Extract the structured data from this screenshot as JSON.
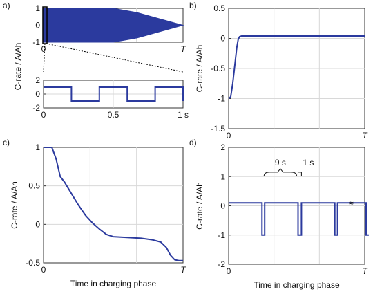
{
  "colors": {
    "line": "#2b3a9e",
    "fill": "#2b3a9e",
    "grid": "#d8d8d8",
    "axis": "#333333"
  },
  "chart_data": [
    {
      "panel_label": "a)",
      "type": "area",
      "ylim": [
        -1,
        1
      ],
      "yticks": [
        "1",
        "0",
        "-1"
      ],
      "xtick_labels": [
        "0",
        "T"
      ],
      "grid": true,
      "x": [
        0,
        0.5,
        0.67,
        1
      ],
      "upper": [
        1,
        1,
        0.75,
        0
      ],
      "lower": [
        -1,
        -1,
        -0.75,
        0
      ],
      "zoom_marker_x": 0.01
    },
    {
      "panel_label": "",
      "type": "line",
      "ylabel": "C-rate / A/Ah",
      "ylim": [
        -2,
        2
      ],
      "xlim": [
        0,
        1
      ],
      "yticks": [
        "2",
        "0",
        "-2"
      ],
      "xtick_labels": [
        "0",
        "0.5",
        "1 s"
      ],
      "grid": true,
      "x": [
        0,
        0.2,
        0.2,
        0.4,
        0.4,
        0.6,
        0.6,
        0.8,
        0.8,
        1,
        1
      ],
      "y": [
        1,
        1,
        -1,
        -1,
        1,
        1,
        -1,
        -1,
        1,
        1,
        -1
      ]
    },
    {
      "panel_label": "b)",
      "type": "line",
      "ylabel": "C-rate / A/Ah",
      "ylim": [
        -1.5,
        0.5
      ],
      "yticks": [
        "0.5",
        "0",
        "-0.5",
        "-1",
        "-1.5"
      ],
      "xtick_labels": [
        "0",
        "T"
      ],
      "grid": true,
      "x": [
        0,
        0.015,
        0.03,
        0.045,
        0.06,
        0.07,
        0.08,
        0.095,
        1
      ],
      "y": [
        -1,
        -0.97,
        -0.75,
        -0.45,
        -0.15,
        -0.02,
        0.03,
        0.04,
        0.04
      ]
    },
    {
      "panel_label": "c)",
      "type": "line",
      "ylabel": "C-rate / A/Ah",
      "xlabel": "Time in charging phase",
      "ylim": [
        -0.5,
        1
      ],
      "yticks": [
        "1",
        "0.5",
        "0",
        "-0.5"
      ],
      "xtick_labels": [
        "0",
        "T"
      ],
      "grid": true,
      "x": [
        0,
        0.06,
        0.09,
        0.12,
        0.15,
        0.2,
        0.25,
        0.3,
        0.35,
        0.4,
        0.45,
        0.5,
        0.6,
        0.7,
        0.78,
        0.84,
        0.88,
        0.91,
        0.94,
        0.97,
        1
      ],
      "y": [
        1,
        1,
        0.85,
        0.62,
        0.55,
        0.4,
        0.25,
        0.12,
        0.02,
        -0.06,
        -0.13,
        -0.16,
        -0.17,
        -0.18,
        -0.2,
        -0.23,
        -0.3,
        -0.4,
        -0.46,
        -0.47,
        -0.47
      ]
    },
    {
      "panel_label": "d)",
      "type": "line",
      "ylabel": "C-rate / A/Ah",
      "xlabel": "Time in charging phase",
      "ylim": [
        -2,
        2
      ],
      "yticks": [
        "2",
        "1",
        "0",
        "-1",
        "-2"
      ],
      "xtick_labels": [
        "0",
        "T"
      ],
      "grid": true,
      "x": [
        0,
        0.245,
        0.245,
        0.265,
        0.265,
        0.51,
        0.51,
        0.535,
        0.535,
        0.78,
        0.78,
        0.8,
        0.8,
        1.01,
        1.01,
        1.03
      ],
      "y": [
        0.1,
        0.1,
        -1,
        -1,
        0.1,
        0.1,
        -1,
        -1,
        0.1,
        0.1,
        -1,
        -1,
        0.1,
        0.1,
        -1,
        -1
      ],
      "annotations": [
        "9 s",
        "1 s",
        "≈"
      ]
    }
  ]
}
